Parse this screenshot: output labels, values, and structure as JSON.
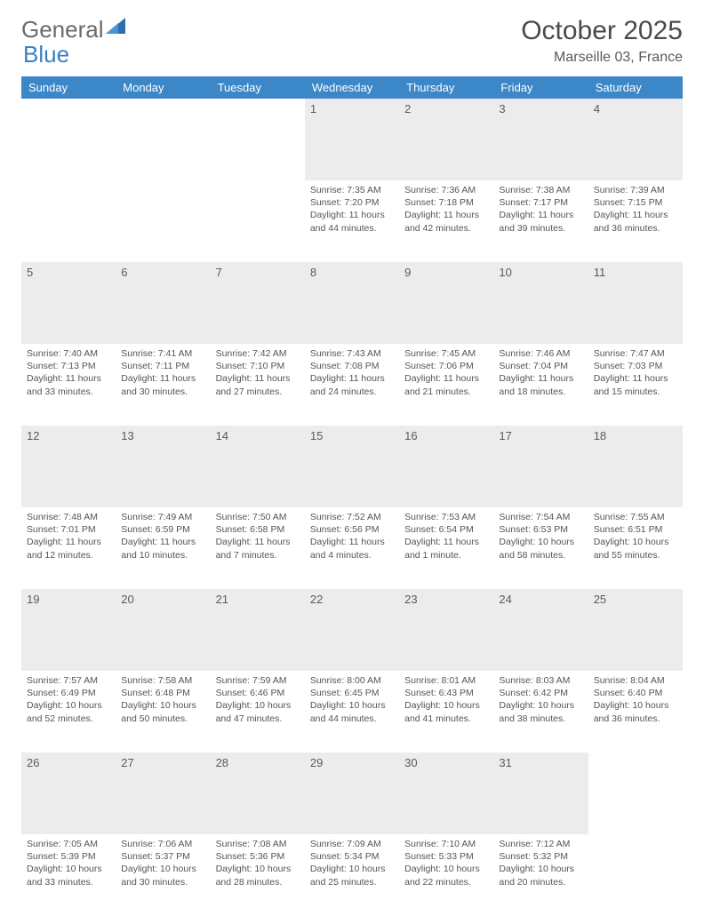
{
  "logo": {
    "text_gray": "General",
    "text_blue": "Blue"
  },
  "title": "October 2025",
  "location": "Marseille 03, France",
  "header_bg": "#3b87c8",
  "daynum_bg": "#ececec",
  "weekdays": [
    "Sunday",
    "Monday",
    "Tuesday",
    "Wednesday",
    "Thursday",
    "Friday",
    "Saturday"
  ],
  "weeks": [
    {
      "nums": [
        "",
        "",
        "",
        "1",
        "2",
        "3",
        "4"
      ],
      "cells": [
        null,
        null,
        null,
        {
          "sunrise": "7:35 AM",
          "sunset": "7:20 PM",
          "daylight": "11 hours and 44 minutes."
        },
        {
          "sunrise": "7:36 AM",
          "sunset": "7:18 PM",
          "daylight": "11 hours and 42 minutes."
        },
        {
          "sunrise": "7:38 AM",
          "sunset": "7:17 PM",
          "daylight": "11 hours and 39 minutes."
        },
        {
          "sunrise": "7:39 AM",
          "sunset": "7:15 PM",
          "daylight": "11 hours and 36 minutes."
        }
      ]
    },
    {
      "nums": [
        "5",
        "6",
        "7",
        "8",
        "9",
        "10",
        "11"
      ],
      "cells": [
        {
          "sunrise": "7:40 AM",
          "sunset": "7:13 PM",
          "daylight": "11 hours and 33 minutes."
        },
        {
          "sunrise": "7:41 AM",
          "sunset": "7:11 PM",
          "daylight": "11 hours and 30 minutes."
        },
        {
          "sunrise": "7:42 AM",
          "sunset": "7:10 PM",
          "daylight": "11 hours and 27 minutes."
        },
        {
          "sunrise": "7:43 AM",
          "sunset": "7:08 PM",
          "daylight": "11 hours and 24 minutes."
        },
        {
          "sunrise": "7:45 AM",
          "sunset": "7:06 PM",
          "daylight": "11 hours and 21 minutes."
        },
        {
          "sunrise": "7:46 AM",
          "sunset": "7:04 PM",
          "daylight": "11 hours and 18 minutes."
        },
        {
          "sunrise": "7:47 AM",
          "sunset": "7:03 PM",
          "daylight": "11 hours and 15 minutes."
        }
      ]
    },
    {
      "nums": [
        "12",
        "13",
        "14",
        "15",
        "16",
        "17",
        "18"
      ],
      "cells": [
        {
          "sunrise": "7:48 AM",
          "sunset": "7:01 PM",
          "daylight": "11 hours and 12 minutes."
        },
        {
          "sunrise": "7:49 AM",
          "sunset": "6:59 PM",
          "daylight": "11 hours and 10 minutes."
        },
        {
          "sunrise": "7:50 AM",
          "sunset": "6:58 PM",
          "daylight": "11 hours and 7 minutes."
        },
        {
          "sunrise": "7:52 AM",
          "sunset": "6:56 PM",
          "daylight": "11 hours and 4 minutes."
        },
        {
          "sunrise": "7:53 AM",
          "sunset": "6:54 PM",
          "daylight": "11 hours and 1 minute."
        },
        {
          "sunrise": "7:54 AM",
          "sunset": "6:53 PM",
          "daylight": "10 hours and 58 minutes."
        },
        {
          "sunrise": "7:55 AM",
          "sunset": "6:51 PM",
          "daylight": "10 hours and 55 minutes."
        }
      ]
    },
    {
      "nums": [
        "19",
        "20",
        "21",
        "22",
        "23",
        "24",
        "25"
      ],
      "cells": [
        {
          "sunrise": "7:57 AM",
          "sunset": "6:49 PM",
          "daylight": "10 hours and 52 minutes."
        },
        {
          "sunrise": "7:58 AM",
          "sunset": "6:48 PM",
          "daylight": "10 hours and 50 minutes."
        },
        {
          "sunrise": "7:59 AM",
          "sunset": "6:46 PM",
          "daylight": "10 hours and 47 minutes."
        },
        {
          "sunrise": "8:00 AM",
          "sunset": "6:45 PM",
          "daylight": "10 hours and 44 minutes."
        },
        {
          "sunrise": "8:01 AM",
          "sunset": "6:43 PM",
          "daylight": "10 hours and 41 minutes."
        },
        {
          "sunrise": "8:03 AM",
          "sunset": "6:42 PM",
          "daylight": "10 hours and 38 minutes."
        },
        {
          "sunrise": "8:04 AM",
          "sunset": "6:40 PM",
          "daylight": "10 hours and 36 minutes."
        }
      ]
    },
    {
      "nums": [
        "26",
        "27",
        "28",
        "29",
        "30",
        "31",
        ""
      ],
      "cells": [
        {
          "sunrise": "7:05 AM",
          "sunset": "5:39 PM",
          "daylight": "10 hours and 33 minutes."
        },
        {
          "sunrise": "7:06 AM",
          "sunset": "5:37 PM",
          "daylight": "10 hours and 30 minutes."
        },
        {
          "sunrise": "7:08 AM",
          "sunset": "5:36 PM",
          "daylight": "10 hours and 28 minutes."
        },
        {
          "sunrise": "7:09 AM",
          "sunset": "5:34 PM",
          "daylight": "10 hours and 25 minutes."
        },
        {
          "sunrise": "7:10 AM",
          "sunset": "5:33 PM",
          "daylight": "10 hours and 22 minutes."
        },
        {
          "sunrise": "7:12 AM",
          "sunset": "5:32 PM",
          "daylight": "10 hours and 20 minutes."
        },
        null
      ]
    }
  ],
  "labels": {
    "sunrise": "Sunrise:",
    "sunset": "Sunset:",
    "daylight": "Daylight:"
  }
}
